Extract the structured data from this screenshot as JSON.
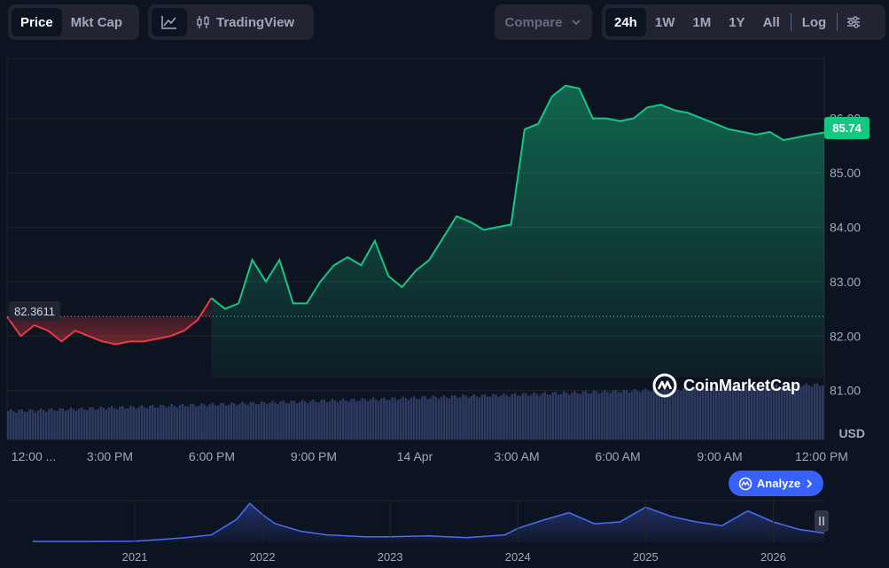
{
  "toolbar": {
    "type_tabs": [
      "Price",
      "Mkt Cap"
    ],
    "tradingview_label": "TradingView",
    "compare_label": "Compare",
    "ranges": [
      "24h",
      "1W",
      "1M",
      "1Y",
      "All"
    ],
    "log_label": "Log"
  },
  "colors": {
    "background": "#0d1421",
    "up": "#16c784",
    "down": "#ea3943",
    "accent": "#3861fb",
    "volume": "#2f3b63",
    "overview_line": "#4a6cf7"
  },
  "icons": [
    "line-chart-icon",
    "candlestick-icon",
    "chevron-down-icon",
    "settings-sliders-icon",
    "coinmarketcap-logo-icon",
    "chevron-right-icon",
    "pause-icon"
  ],
  "price_tag": "85.74",
  "open_tag": "82.3611",
  "watermark": "CoinMarketCap",
  "analyze_label": "Analyze",
  "chart_data": [
    {
      "type": "area",
      "currency": "USD",
      "y_ticks": [
        "81.00",
        "82.00",
        "83.00",
        "84.00",
        "85.00",
        "86.00"
      ],
      "x_ticks": [
        "12:00 ...",
        "3:00 PM",
        "6:00 PM",
        "9:00 PM",
        "14 Apr",
        "3:00 AM",
        "6:00 AM",
        "9:00 AM",
        "12:00 PM"
      ],
      "ylim": [
        80.1,
        87.1
      ],
      "baseline": 82.3611,
      "last_price": 85.74,
      "x_hours": [
        0,
        0.4,
        0.8,
        1.2,
        1.6,
        2.0,
        2.4,
        2.8,
        3.2,
        3.6,
        4.0,
        4.4,
        4.8,
        5.2,
        5.6,
        6.0,
        6.4,
        6.8,
        7.2,
        7.6,
        8.0,
        8.4,
        8.8,
        9.2,
        9.6,
        10.0,
        10.4,
        10.8,
        11.2,
        11.6,
        12.0,
        12.4,
        12.8,
        13.2,
        13.6,
        14.0,
        14.4,
        14.8,
        15.2,
        15.6,
        16.0,
        16.4,
        16.8,
        17.2,
        17.6,
        18.0,
        18.4,
        18.8,
        19.2,
        19.6,
        20.0,
        20.4,
        20.8,
        21.2,
        21.6,
        22.0,
        22.4,
        22.8,
        23.2,
        23.6,
        24.0
      ],
      "prices": [
        82.36,
        82.0,
        82.2,
        82.1,
        81.9,
        82.1,
        82.0,
        81.9,
        81.85,
        81.9,
        81.9,
        81.95,
        82.0,
        82.1,
        82.3,
        82.7,
        82.5,
        82.6,
        83.4,
        83.0,
        83.4,
        82.6,
        82.6,
        83.0,
        83.3,
        83.45,
        83.3,
        83.75,
        83.1,
        82.9,
        83.2,
        83.4,
        83.8,
        84.2,
        84.1,
        83.95,
        84.0,
        84.05,
        85.8,
        85.9,
        86.4,
        86.6,
        86.55,
        86.0,
        86.0,
        85.95,
        86.0,
        86.2,
        86.25,
        86.15,
        86.1,
        86.0,
        85.9,
        85.8,
        85.75,
        85.7,
        85.75,
        85.6,
        85.65,
        85.7,
        85.74
      ]
    },
    {
      "type": "area",
      "title": "",
      "x_ticks": [
        "2021",
        "2022",
        "2023",
        "2024",
        "2025",
        "2026"
      ],
      "x_years": [
        2020.2,
        2020.6,
        2021.0,
        2021.2,
        2021.4,
        2021.6,
        2021.8,
        2021.9,
        2022.0,
        2022.1,
        2022.3,
        2022.5,
        2022.8,
        2023.0,
        2023.3,
        2023.6,
        2023.9,
        2024.0,
        2024.2,
        2024.4,
        2024.6,
        2024.8,
        2025.0,
        2025.2,
        2025.4,
        2025.6,
        2025.8,
        2026.0,
        2026.2,
        2026.4
      ],
      "values": [
        1,
        1,
        1.2,
        3,
        5,
        8,
        25,
        42,
        30,
        20,
        12,
        8,
        6,
        6,
        7,
        5,
        8,
        15,
        24,
        32,
        20,
        22,
        38,
        28,
        22,
        18,
        34,
        22,
        14,
        10
      ]
    }
  ]
}
